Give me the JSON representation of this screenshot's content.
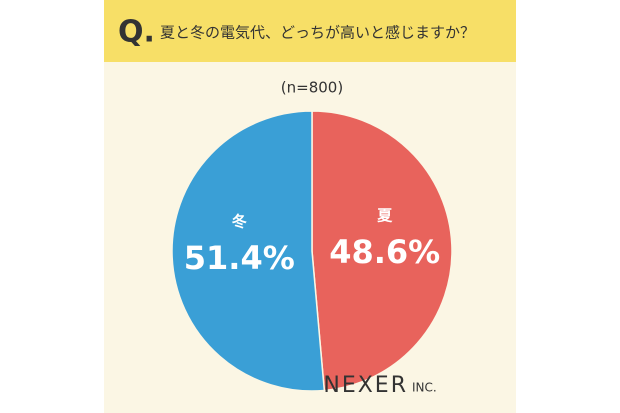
{
  "chart_data": {
    "type": "pie",
    "title_prefix": "Q.",
    "title": "夏と冬の電気代、どっちが高いと感じますか？",
    "subtitle": "(n=800)",
    "categories": [
      "夏",
      "冬"
    ],
    "values": [
      48.6,
      51.4
    ],
    "value_labels": [
      "48.6%",
      "51.4%"
    ],
    "colors": [
      "#e8635c",
      "#3a9fd6"
    ],
    "start_angle": 0,
    "direction": "clockwise"
  },
  "logo": {
    "brand": "NEXER",
    "suffix": "INC."
  }
}
